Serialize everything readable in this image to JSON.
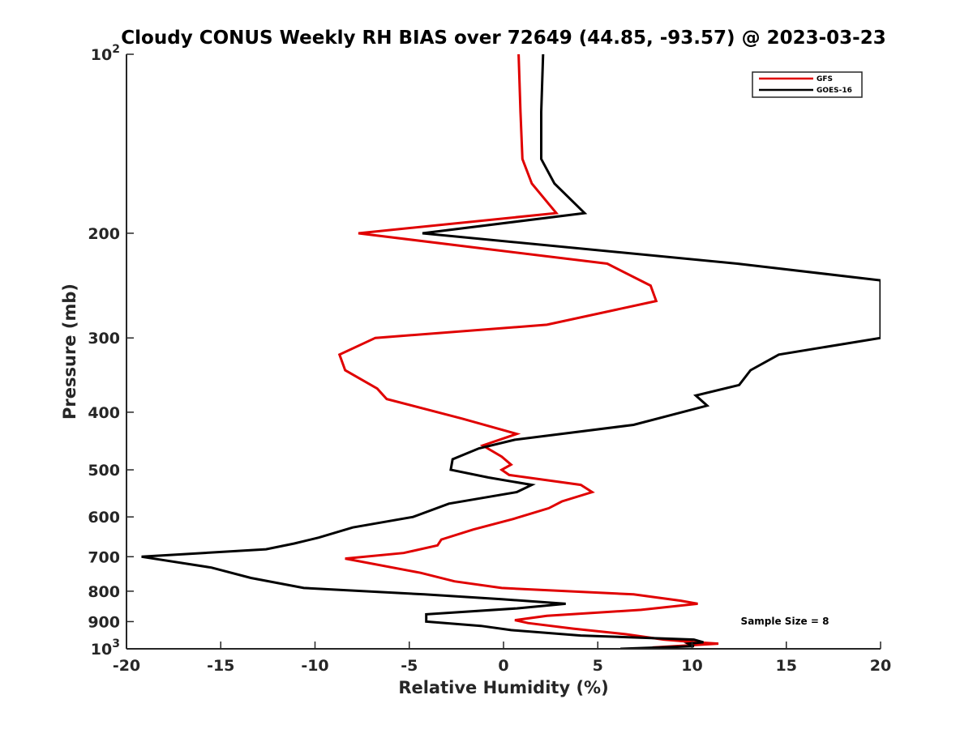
{
  "chart_data": {
    "type": "line",
    "title": "Cloudy CONUS Weekly RH BIAS over 72649 (44.85, -93.57) @ 2023-03-23",
    "xlabel": "Relative Humidity (%)",
    "ylabel": "Pressure (mb)",
    "xlim": [
      -20,
      20
    ],
    "ylim": [
      100,
      1000
    ],
    "y_scale": "log",
    "y_reversed": true,
    "x_ticks": [
      -20,
      -15,
      -10,
      -5,
      0,
      5,
      10,
      15,
      20
    ],
    "x_tick_labels": [
      "-20",
      "-15",
      "-10",
      "-5",
      "0",
      "5",
      "10",
      "15",
      "20"
    ],
    "y_ticks": [
      100,
      200,
      300,
      400,
      500,
      600,
      700,
      800,
      900,
      1000
    ],
    "y_tick_labels": [
      {
        "base": "10",
        "exp": "2"
      },
      {
        "base": "200",
        "exp": ""
      },
      {
        "base": "300",
        "exp": ""
      },
      {
        "base": "400",
        "exp": ""
      },
      {
        "base": "500",
        "exp": ""
      },
      {
        "base": "600",
        "exp": ""
      },
      {
        "base": "700",
        "exp": ""
      },
      {
        "base": "800",
        "exp": ""
      },
      {
        "base": "900",
        "exp": ""
      },
      {
        "base": "10",
        "exp": "3"
      }
    ],
    "grid": false,
    "legend_position": "top-right",
    "annotation": "Sample Size = 8",
    "series": [
      {
        "name": "GFS",
        "color": "#e00000",
        "points": [
          [
            0.8,
            100
          ],
          [
            0.9,
            125
          ],
          [
            1.0,
            150
          ],
          [
            1.5,
            165
          ],
          [
            2.8,
            185
          ],
          [
            -7.7,
            200
          ],
          [
            5.5,
            225
          ],
          [
            7.8,
            245
          ],
          [
            8.1,
            260
          ],
          [
            2.3,
            285
          ],
          [
            -6.8,
            300
          ],
          [
            -8.7,
            320
          ],
          [
            -8.4,
            340
          ],
          [
            -6.7,
            365
          ],
          [
            -6.2,
            380
          ],
          [
            -2.2,
            410
          ],
          [
            0.7,
            435
          ],
          [
            -1.1,
            455
          ],
          [
            -0.1,
            475
          ],
          [
            0.4,
            490
          ],
          [
            -0.1,
            500
          ],
          [
            0.3,
            510
          ],
          [
            4.1,
            530
          ],
          [
            4.7,
            545
          ],
          [
            3.1,
            565
          ],
          [
            2.4,
            580
          ],
          [
            0.5,
            605
          ],
          [
            -1.6,
            630
          ],
          [
            -3.3,
            655
          ],
          [
            -3.5,
            670
          ],
          [
            -5.3,
            690
          ],
          [
            -8.4,
            705
          ],
          [
            -4.4,
            745
          ],
          [
            -2.6,
            770
          ],
          [
            -0.1,
            790
          ],
          [
            6.9,
            810
          ],
          [
            9.4,
            830
          ],
          [
            10.3,
            840
          ],
          [
            7.3,
            860
          ],
          [
            2.3,
            880
          ],
          [
            0.6,
            895
          ],
          [
            1.3,
            905
          ],
          [
            3.7,
            925
          ],
          [
            6.5,
            945
          ],
          [
            8.5,
            965
          ],
          [
            10.2,
            975
          ],
          [
            11.4,
            980
          ],
          [
            7.9,
            995
          ]
        ]
      },
      {
        "name": "GOES-16",
        "color": "#000000",
        "points": [
          [
            2.1,
            100
          ],
          [
            2.0,
            125
          ],
          [
            2.0,
            150
          ],
          [
            2.7,
            165
          ],
          [
            4.3,
            185
          ],
          [
            -4.3,
            200
          ],
          [
            12.4,
            225
          ],
          [
            20.0,
            240
          ],
          [
            20.0,
            300
          ],
          [
            14.6,
            320
          ],
          [
            13.1,
            340
          ],
          [
            12.5,
            360
          ],
          [
            10.2,
            375
          ],
          [
            10.8,
            390
          ],
          [
            6.9,
            420
          ],
          [
            0.6,
            445
          ],
          [
            -1.3,
            460
          ],
          [
            -2.7,
            480
          ],
          [
            -2.8,
            500
          ],
          [
            -0.8,
            515
          ],
          [
            1.5,
            530
          ],
          [
            0.7,
            545
          ],
          [
            -2.9,
            570
          ],
          [
            -4.8,
            600
          ],
          [
            -8.0,
            625
          ],
          [
            -9.8,
            650
          ],
          [
            -11.1,
            665
          ],
          [
            -12.6,
            680
          ],
          [
            -19.2,
            700
          ],
          [
            -15.5,
            730
          ],
          [
            -13.4,
            760
          ],
          [
            -10.6,
            790
          ],
          [
            -4.2,
            810
          ],
          [
            -0.1,
            825
          ],
          [
            3.3,
            840
          ],
          [
            0.7,
            855
          ],
          [
            -4.1,
            875
          ],
          [
            -4.1,
            900
          ],
          [
            -1.2,
            915
          ],
          [
            0.4,
            930
          ],
          [
            4.1,
            950
          ],
          [
            10.1,
            965
          ],
          [
            10.6,
            975
          ],
          [
            9.8,
            980
          ],
          [
            10.1,
            990
          ],
          [
            6.2,
            1000
          ]
        ]
      }
    ]
  }
}
